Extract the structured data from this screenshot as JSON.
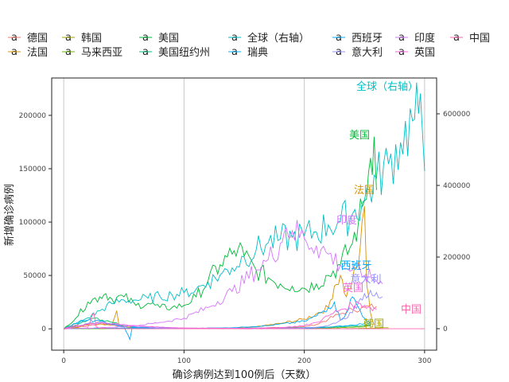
{
  "chart_data": {
    "type": "line",
    "xlabel": "确诊病例达到100例后（天数）",
    "ylabel": "新增确诊病例",
    "xlim": [
      -10,
      310
    ],
    "ylim_left": [
      -20000,
      235000
    ],
    "ylim_right": [
      -60000,
      700000
    ],
    "x_ticks": [
      0,
      100,
      200,
      300
    ],
    "y_ticks_left": [
      0,
      50000,
      100000,
      150000,
      200000
    ],
    "y_ticks_right": [
      0,
      200000,
      400000,
      600000
    ],
    "grid": "vertical",
    "legend_position": "top",
    "series": [
      {
        "name": "德国",
        "color": "#F8766D",
        "axis": "left",
        "label": "",
        "points": [
          [
            0,
            0
          ],
          [
            10,
            1500
          ],
          [
            20,
            4500
          ],
          [
            30,
            5800
          ],
          [
            40,
            3500
          ],
          [
            50,
            2200
          ],
          [
            60,
            1200
          ],
          [
            80,
            600
          ],
          [
            100,
            400
          ],
          [
            120,
            400
          ],
          [
            140,
            500
          ],
          [
            160,
            800
          ],
          [
            180,
            1200
          ],
          [
            200,
            2000
          ],
          [
            210,
            4000
          ],
          [
            220,
            9000
          ],
          [
            230,
            14000
          ],
          [
            240,
            18000
          ],
          [
            250,
            20000
          ],
          [
            260,
            21000
          ]
        ]
      },
      {
        "name": "法国",
        "color": "#D89000",
        "axis": "left",
        "label": "法国",
        "points": [
          [
            0,
            0
          ],
          [
            10,
            1000
          ],
          [
            20,
            3500
          ],
          [
            30,
            4500
          ],
          [
            40,
            4000
          ],
          [
            44,
            17000
          ],
          [
            46,
            3000
          ],
          [
            60,
            1000
          ],
          [
            80,
            500
          ],
          [
            100,
            400
          ],
          [
            120,
            500
          ],
          [
            140,
            700
          ],
          [
            160,
            2000
          ],
          [
            180,
            5000
          ],
          [
            200,
            9000
          ],
          [
            210,
            14000
          ],
          [
            220,
            20000
          ],
          [
            225,
            40000
          ],
          [
            230,
            50000
          ],
          [
            235,
            30000
          ],
          [
            240,
            45000
          ],
          [
            245,
            60000
          ],
          [
            248,
            100000
          ],
          [
            250,
            115000
          ],
          [
            252,
            40000
          ],
          [
            255,
            15000
          ],
          [
            258,
            4000
          ]
        ]
      },
      {
        "name": "韩国",
        "color": "#A3A500",
        "axis": "left",
        "label": "韩国",
        "points": [
          [
            0,
            0
          ],
          [
            5,
            400
          ],
          [
            10,
            900
          ],
          [
            15,
            500
          ],
          [
            20,
            200
          ],
          [
            40,
            100
          ],
          [
            60,
            50
          ],
          [
            100,
            60
          ],
          [
            140,
            80
          ],
          [
            170,
            250
          ],
          [
            200,
            200
          ],
          [
            220,
            120
          ],
          [
            240,
            300
          ],
          [
            260,
            700
          ],
          [
            270,
            1000
          ]
        ]
      },
      {
        "name": "马来西亚",
        "color": "#6BB100",
        "axis": "left",
        "label": "",
        "points": [
          [
            0,
            0
          ],
          [
            20,
            100
          ],
          [
            50,
            100
          ],
          [
            100,
            50
          ],
          [
            150,
            30
          ],
          [
            180,
            100
          ],
          [
            200,
            300
          ],
          [
            220,
            800
          ],
          [
            240,
            1500
          ],
          [
            255,
            2500
          ]
        ]
      },
      {
        "name": "美国",
        "color": "#00BA38",
        "axis": "left",
        "label": "美国",
        "points": [
          [
            0,
            0
          ],
          [
            10,
            10000
          ],
          [
            20,
            25000
          ],
          [
            30,
            30000
          ],
          [
            35,
            33000
          ],
          [
            40,
            28000
          ],
          [
            50,
            30000
          ],
          [
            60,
            22000
          ],
          [
            70,
            24000
          ],
          [
            80,
            20000
          ],
          [
            90,
            20000
          ],
          [
            100,
            22000
          ],
          [
            110,
            30000
          ],
          [
            120,
            45000
          ],
          [
            130,
            60000
          ],
          [
            140,
            70000
          ],
          [
            145,
            75000
          ],
          [
            150,
            68000
          ],
          [
            160,
            55000
          ],
          [
            170,
            48000
          ],
          [
            180,
            42000
          ],
          [
            190,
            40000
          ],
          [
            200,
            38000
          ],
          [
            210,
            42000
          ],
          [
            220,
            50000
          ],
          [
            230,
            60000
          ],
          [
            240,
            80000
          ],
          [
            245,
            100000
          ],
          [
            250,
            120000
          ],
          [
            255,
            160000
          ],
          [
            258,
            180000
          ],
          [
            260,
            130000
          ]
        ]
      },
      {
        "name": "美国纽约州",
        "color": "#00BF7D",
        "axis": "left",
        "label": "",
        "points": [
          [
            0,
            0
          ],
          [
            10,
            3000
          ],
          [
            20,
            8000
          ],
          [
            25,
            10000
          ],
          [
            30,
            8000
          ],
          [
            40,
            6000
          ],
          [
            50,
            3000
          ],
          [
            60,
            1500
          ],
          [
            80,
            700
          ],
          [
            100,
            600
          ],
          [
            140,
            700
          ],
          [
            180,
            800
          ],
          [
            200,
            1000
          ],
          [
            220,
            1500
          ],
          [
            240,
            2500
          ],
          [
            255,
            3500
          ]
        ]
      },
      {
        "name": "全球（右轴）",
        "color": "#00BFC4",
        "axis": "right",
        "label": "全球（右轴）",
        "points": [
          [
            0,
            0
          ],
          [
            10,
            15000
          ],
          [
            20,
            30000
          ],
          [
            30,
            50000
          ],
          [
            40,
            70000
          ],
          [
            50,
            80000
          ],
          [
            60,
            80000
          ],
          [
            70,
            85000
          ],
          [
            80,
            90000
          ],
          [
            90,
            95000
          ],
          [
            100,
            100000
          ],
          [
            110,
            110000
          ],
          [
            120,
            130000
          ],
          [
            130,
            150000
          ],
          [
            140,
            170000
          ],
          [
            150,
            200000
          ],
          [
            160,
            220000
          ],
          [
            170,
            240000
          ],
          [
            180,
            250000
          ],
          [
            190,
            255000
          ],
          [
            200,
            260000
          ],
          [
            210,
            270000
          ],
          [
            220,
            290000
          ],
          [
            230,
            300000
          ],
          [
            240,
            320000
          ],
          [
            250,
            360000
          ],
          [
            260,
            420000
          ],
          [
            270,
            460000
          ],
          [
            280,
            520000
          ],
          [
            290,
            580000
          ],
          [
            295,
            600000
          ],
          [
            298,
            560000
          ],
          [
            300,
            440000
          ]
        ]
      },
      {
        "name": "瑞典",
        "color": "#00B0F6",
        "axis": "left",
        "label": "",
        "points": [
          [
            0,
            0
          ],
          [
            20,
            400
          ],
          [
            40,
            600
          ],
          [
            60,
            800
          ],
          [
            80,
            1000
          ],
          [
            100,
            400
          ],
          [
            140,
            200
          ],
          [
            180,
            300
          ],
          [
            200,
            500
          ],
          [
            220,
            1500
          ],
          [
            240,
            3500
          ],
          [
            250,
            5000
          ],
          [
            255,
            6000
          ]
        ]
      },
      {
        "name": "西班牙",
        "color": "#00A9FF",
        "axis": "left",
        "label": "西班牙",
        "points": [
          [
            0,
            0
          ],
          [
            10,
            5000
          ],
          [
            20,
            8000
          ],
          [
            30,
            7000
          ],
          [
            40,
            4000
          ],
          [
            50,
            2000
          ],
          [
            55,
            -10000
          ],
          [
            57,
            1500
          ],
          [
            70,
            500
          ],
          [
            100,
            400
          ],
          [
            140,
            1000
          ],
          [
            170,
            3000
          ],
          [
            200,
            7000
          ],
          [
            210,
            12000
          ],
          [
            220,
            20000
          ],
          [
            225,
            25000
          ],
          [
            230,
            8000
          ],
          [
            235,
            15000
          ],
          [
            240,
            30000
          ],
          [
            245,
            20000
          ],
          [
            250,
            10000
          ],
          [
            255,
            5000
          ]
        ]
      },
      {
        "name": "意大利",
        "color": "#9590FF",
        "axis": "left",
        "label": "意大利",
        "points": [
          [
            0,
            0
          ],
          [
            10,
            2000
          ],
          [
            20,
            5000
          ],
          [
            30,
            6000
          ],
          [
            40,
            4500
          ],
          [
            50,
            3000
          ],
          [
            60,
            2000
          ],
          [
            80,
            800
          ],
          [
            100,
            300
          ],
          [
            140,
            200
          ],
          [
            180,
            400
          ],
          [
            200,
            1000
          ],
          [
            210,
            1500
          ],
          [
            220,
            3000
          ],
          [
            230,
            8000
          ],
          [
            240,
            15000
          ],
          [
            245,
            25000
          ],
          [
            250,
            33000
          ],
          [
            255,
            36000
          ],
          [
            260,
            34000
          ],
          [
            265,
            30000
          ]
        ]
      },
      {
        "name": "印度",
        "color": "#D575FE",
        "axis": "left",
        "label": "印度",
        "points": [
          [
            0,
            0
          ],
          [
            20,
            500
          ],
          [
            40,
            1500
          ],
          [
            60,
            3000
          ],
          [
            80,
            6000
          ],
          [
            100,
            10000
          ],
          [
            120,
            20000
          ],
          [
            140,
            35000
          ],
          [
            160,
            55000
          ],
          [
            170,
            65000
          ],
          [
            180,
            80000
          ],
          [
            185,
            95000
          ],
          [
            190,
            92000
          ],
          [
            200,
            85000
          ],
          [
            210,
            78000
          ],
          [
            220,
            70000
          ],
          [
            230,
            60000
          ],
          [
            240,
            55000
          ],
          [
            250,
            50000
          ],
          [
            260,
            45000
          ],
          [
            265,
            42000
          ]
        ]
      },
      {
        "name": "英国",
        "color": "#F962DD",
        "axis": "left",
        "label": "英国",
        "points": [
          [
            0,
            0
          ],
          [
            10,
            2000
          ],
          [
            20,
            4000
          ],
          [
            30,
            5000
          ],
          [
            40,
            4500
          ],
          [
            50,
            4000
          ],
          [
            60,
            3000
          ],
          [
            80,
            1500
          ],
          [
            100,
            800
          ],
          [
            140,
            500
          ],
          [
            180,
            1000
          ],
          [
            200,
            3000
          ],
          [
            210,
            6000
          ],
          [
            220,
            12000
          ],
          [
            230,
            18000
          ],
          [
            240,
            22000
          ],
          [
            245,
            24000
          ],
          [
            250,
            22000
          ],
          [
            255,
            20000
          ],
          [
            260,
            18000
          ]
        ]
      },
      {
        "name": "中国",
        "color": "#FF65AC",
        "axis": "left",
        "label": "中国",
        "points": [
          [
            0,
            0
          ],
          [
            5,
            2000
          ],
          [
            10,
            3500
          ],
          [
            15,
            2500
          ],
          [
            20,
            1500
          ],
          [
            25,
            15000
          ],
          [
            27,
            2000
          ],
          [
            30,
            600
          ],
          [
            40,
            200
          ],
          [
            60,
            50
          ],
          [
            100,
            30
          ],
          [
            150,
            20
          ],
          [
            200,
            30
          ],
          [
            250,
            20
          ],
          [
            300,
            30
          ]
        ]
      }
    ]
  }
}
